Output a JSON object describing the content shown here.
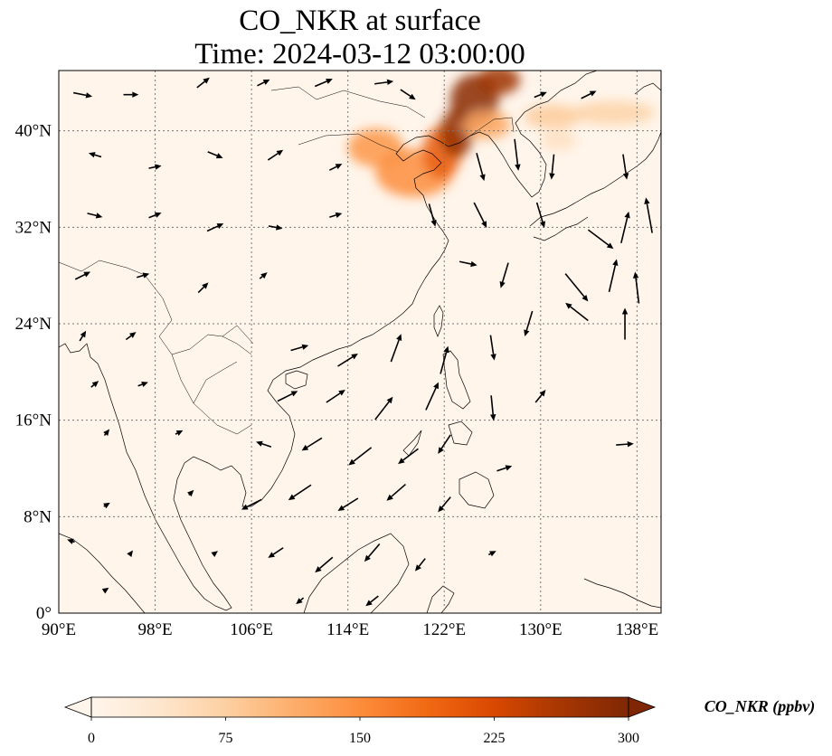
{
  "title": {
    "line1": "CO_NKR at surface",
    "line2": "Time: 2024-03-12 03:00:00"
  },
  "map": {
    "lon_range": [
      90,
      140
    ],
    "lat_range": [
      0,
      45
    ],
    "x_ticks": [
      {
        "value": 90,
        "label": "90°E"
      },
      {
        "value": 98,
        "label": "98°E"
      },
      {
        "value": 106,
        "label": "106°E"
      },
      {
        "value": 114,
        "label": "114°E"
      },
      {
        "value": 122,
        "label": "122°E"
      },
      {
        "value": 130,
        "label": "130°E"
      },
      {
        "value": 138,
        "label": "138°E"
      }
    ],
    "y_ticks": [
      {
        "value": 0,
        "label": "0°"
      },
      {
        "value": 8,
        "label": "8°N"
      },
      {
        "value": 16,
        "label": "16°N"
      },
      {
        "value": 24,
        "label": "24°N"
      },
      {
        "value": 32,
        "label": "32°N"
      },
      {
        "value": 40,
        "label": "40°N"
      }
    ],
    "gridlines": true,
    "background_color": "#fff5eb",
    "coastline_color": "#000000",
    "plumes": [
      {
        "lon": 116.3,
        "lat": 38.6,
        "rlon": 2.3,
        "rlat": 1.6,
        "value": 140
      },
      {
        "lon": 119.5,
        "lat": 36.5,
        "rlon": 3.2,
        "rlat": 2.0,
        "value": 150
      },
      {
        "lon": 121.8,
        "lat": 38.2,
        "rlon": 1.6,
        "rlat": 2.2,
        "value": 200
      },
      {
        "lon": 123.0,
        "lat": 39.8,
        "rlon": 1.4,
        "rlat": 2.0,
        "value": 280
      },
      {
        "lon": 124.5,
        "lat": 42.5,
        "rlon": 2.0,
        "rlat": 2.2,
        "value": 290
      },
      {
        "lon": 126.5,
        "lat": 44.2,
        "rlon": 1.8,
        "rlat": 1.2,
        "value": 270
      },
      {
        "lon": 125.5,
        "lat": 40.5,
        "rlon": 2.0,
        "rlat": 1.2,
        "value": 120
      },
      {
        "lon": 131.0,
        "lat": 41.2,
        "rlon": 2.4,
        "rlat": 1.0,
        "value": 80
      },
      {
        "lon": 136.0,
        "lat": 41.5,
        "rlon": 3.5,
        "rlat": 1.0,
        "value": 70
      },
      {
        "lon": 131.5,
        "lat": 39.2,
        "rlon": 1.5,
        "rlat": 0.8,
        "value": 50
      }
    ],
    "wind_vectors": [
      {
        "lon": 92,
        "lat": 43,
        "u": 1.5,
        "v": -0.3
      },
      {
        "lon": 96,
        "lat": 43,
        "u": 1.2,
        "v": 0.0
      },
      {
        "lon": 102,
        "lat": 44,
        "u": 1.0,
        "v": 0.8
      },
      {
        "lon": 107,
        "lat": 44,
        "u": 1.0,
        "v": 0.5
      },
      {
        "lon": 112,
        "lat": 44,
        "u": 1.4,
        "v": 0.6
      },
      {
        "lon": 117,
        "lat": 44,
        "u": 1.5,
        "v": 0.2
      },
      {
        "lon": 119,
        "lat": 43,
        "u": 1.2,
        "v": -0.8
      },
      {
        "lon": 130,
        "lat": 43,
        "u": 1.0,
        "v": 0.4
      },
      {
        "lon": 134,
        "lat": 43,
        "u": 1.2,
        "v": 0.6
      },
      {
        "lon": 93,
        "lat": 38,
        "u": -1.0,
        "v": 0.3
      },
      {
        "lon": 98,
        "lat": 37,
        "u": 1.0,
        "v": 0.2
      },
      {
        "lon": 103,
        "lat": 38,
        "u": 1.2,
        "v": -0.5
      },
      {
        "lon": 108,
        "lat": 38,
        "u": 1.2,
        "v": 0.8
      },
      {
        "lon": 113,
        "lat": 37,
        "u": 1.0,
        "v": 0.5
      },
      {
        "lon": 125,
        "lat": 37,
        "u": 0.6,
        "v": -2.2
      },
      {
        "lon": 128,
        "lat": 38,
        "u": 0.3,
        "v": -2.5
      },
      {
        "lon": 131,
        "lat": 37,
        "u": -0.2,
        "v": -2.0
      },
      {
        "lon": 137,
        "lat": 37,
        "u": 0.3,
        "v": -2.0
      },
      {
        "lon": 93,
        "lat": 33,
        "u": 1.2,
        "v": -0.3
      },
      {
        "lon": 98,
        "lat": 33,
        "u": 1.0,
        "v": 0.4
      },
      {
        "lon": 103,
        "lat": 32,
        "u": 1.3,
        "v": 0.6
      },
      {
        "lon": 108,
        "lat": 32,
        "u": 1.1,
        "v": -0.2
      },
      {
        "lon": 113,
        "lat": 33,
        "u": 1.0,
        "v": 0.3
      },
      {
        "lon": 121,
        "lat": 33,
        "u": 0.5,
        "v": -1.8
      },
      {
        "lon": 125,
        "lat": 33,
        "u": 1.0,
        "v": -2.0
      },
      {
        "lon": 130,
        "lat": 33,
        "u": 0.6,
        "v": -2.0
      },
      {
        "lon": 135,
        "lat": 31,
        "u": 2.0,
        "v": -1.5
      },
      {
        "lon": 137,
        "lat": 32,
        "u": 0.6,
        "v": 2.5
      },
      {
        "lon": 139,
        "lat": 33,
        "u": -0.5,
        "v": 2.8
      },
      {
        "lon": 92,
        "lat": 28,
        "u": 1.2,
        "v": 0.6
      },
      {
        "lon": 97,
        "lat": 28,
        "u": 1.0,
        "v": 0.3
      },
      {
        "lon": 102,
        "lat": 27,
        "u": 0.8,
        "v": 0.8
      },
      {
        "lon": 107,
        "lat": 28,
        "u": 0.6,
        "v": 0.5
      },
      {
        "lon": 124,
        "lat": 29,
        "u": 1.4,
        "v": -0.3
      },
      {
        "lon": 127,
        "lat": 28,
        "u": -0.6,
        "v": -2.0
      },
      {
        "lon": 133,
        "lat": 27,
        "u": 1.8,
        "v": -2.2
      },
      {
        "lon": 136,
        "lat": 28,
        "u": 0.6,
        "v": 2.6
      },
      {
        "lon": 138,
        "lat": 27,
        "u": -0.3,
        "v": 2.5
      },
      {
        "lon": 92,
        "lat": 23,
        "u": 0.5,
        "v": 0.8
      },
      {
        "lon": 96,
        "lat": 23,
        "u": 0.8,
        "v": 0.6
      },
      {
        "lon": 110,
        "lat": 22,
        "u": 1.4,
        "v": 0.4
      },
      {
        "lon": 114,
        "lat": 21,
        "u": 1.6,
        "v": 1.0
      },
      {
        "lon": 118,
        "lat": 22,
        "u": 0.8,
        "v": 2.2
      },
      {
        "lon": 122,
        "lat": 21,
        "u": 0.6,
        "v": 2.2
      },
      {
        "lon": 126,
        "lat": 22,
        "u": 0.3,
        "v": -2.0
      },
      {
        "lon": 129,
        "lat": 24,
        "u": -0.6,
        "v": -2.0
      },
      {
        "lon": 133,
        "lat": 25,
        "u": -1.8,
        "v": 1.4
      },
      {
        "lon": 137,
        "lat": 24,
        "u": 0.0,
        "v": 2.5
      },
      {
        "lon": 93,
        "lat": 19,
        "u": 0.6,
        "v": 0.5
      },
      {
        "lon": 97,
        "lat": 19,
        "u": 0.8,
        "v": 0.3
      },
      {
        "lon": 109,
        "lat": 18,
        "u": 1.6,
        "v": 0.8
      },
      {
        "lon": 113,
        "lat": 18,
        "u": 1.5,
        "v": 1.0
      },
      {
        "lon": 117,
        "lat": 17,
        "u": 1.4,
        "v": 1.8
      },
      {
        "lon": 121,
        "lat": 18,
        "u": 1.0,
        "v": 2.2
      },
      {
        "lon": 126,
        "lat": 17,
        "u": 0.2,
        "v": -2.0
      },
      {
        "lon": 130,
        "lat": 18,
        "u": 0.8,
        "v": 1.0
      },
      {
        "lon": 94,
        "lat": 15,
        "u": 0.4,
        "v": 0.5
      },
      {
        "lon": 100,
        "lat": 15,
        "u": 0.6,
        "v": 0.3
      },
      {
        "lon": 107,
        "lat": 14,
        "u": -1.2,
        "v": 0.4
      },
      {
        "lon": 111,
        "lat": 14,
        "u": -1.6,
        "v": -1.0
      },
      {
        "lon": 115,
        "lat": 13,
        "u": -1.8,
        "v": -1.4
      },
      {
        "lon": 119,
        "lat": 13,
        "u": -1.6,
        "v": -1.2
      },
      {
        "lon": 122,
        "lat": 14,
        "u": -1.0,
        "v": -1.5
      },
      {
        "lon": 127,
        "lat": 12,
        "u": 1.2,
        "v": 0.4
      },
      {
        "lon": 137,
        "lat": 14,
        "u": 1.4,
        "v": 0.1
      },
      {
        "lon": 94,
        "lat": 9,
        "u": 0.5,
        "v": 0.3
      },
      {
        "lon": 101,
        "lat": 10,
        "u": 0.4,
        "v": 0.4
      },
      {
        "lon": 106,
        "lat": 9,
        "u": -1.6,
        "v": -0.8
      },
      {
        "lon": 110,
        "lat": 10,
        "u": -1.8,
        "v": -1.2
      },
      {
        "lon": 114,
        "lat": 9,
        "u": -1.6,
        "v": -1.0
      },
      {
        "lon": 118,
        "lat": 10,
        "u": -1.5,
        "v": -1.3
      },
      {
        "lon": 122,
        "lat": 9,
        "u": -1.0,
        "v": -1.2
      },
      {
        "lon": 91,
        "lat": 6,
        "u": -0.6,
        "v": 0.2
      },
      {
        "lon": 96,
        "lat": 5,
        "u": 0.3,
        "v": 0.4
      },
      {
        "lon": 103,
        "lat": 5,
        "u": 0.4,
        "v": 0.3
      },
      {
        "lon": 108,
        "lat": 5,
        "u": -1.2,
        "v": -0.8
      },
      {
        "lon": 112,
        "lat": 4,
        "u": -1.4,
        "v": -1.2
      },
      {
        "lon": 116,
        "lat": 5,
        "u": -1.2,
        "v": -1.4
      },
      {
        "lon": 120,
        "lat": 4,
        "u": -0.8,
        "v": -1.0
      },
      {
        "lon": 126,
        "lat": 5,
        "u": 0.6,
        "v": 0.3
      },
      {
        "lon": 94,
        "lat": 2,
        "u": 0.3,
        "v": 0.2
      },
      {
        "lon": 110,
        "lat": 1,
        "u": -0.6,
        "v": -0.5
      },
      {
        "lon": 116,
        "lat": 1,
        "u": -1.0,
        "v": -0.8
      }
    ]
  },
  "colorbar": {
    "label": "CO_NKR (ppbv)",
    "ticks": [
      {
        "value": 0,
        "label": "0"
      },
      {
        "value": 75,
        "label": "75"
      },
      {
        "value": 150,
        "label": "150"
      },
      {
        "value": 225,
        "label": "225"
      },
      {
        "value": 300,
        "label": "300"
      }
    ],
    "range": [
      0,
      300
    ],
    "extend": "both",
    "colormap": "OrRd-like",
    "stops": [
      "#fff5eb",
      "#fee6ce",
      "#fdd0a2",
      "#fdae6b",
      "#fd8d3c",
      "#f16913",
      "#d94801",
      "#a63603",
      "#7f2704"
    ]
  }
}
